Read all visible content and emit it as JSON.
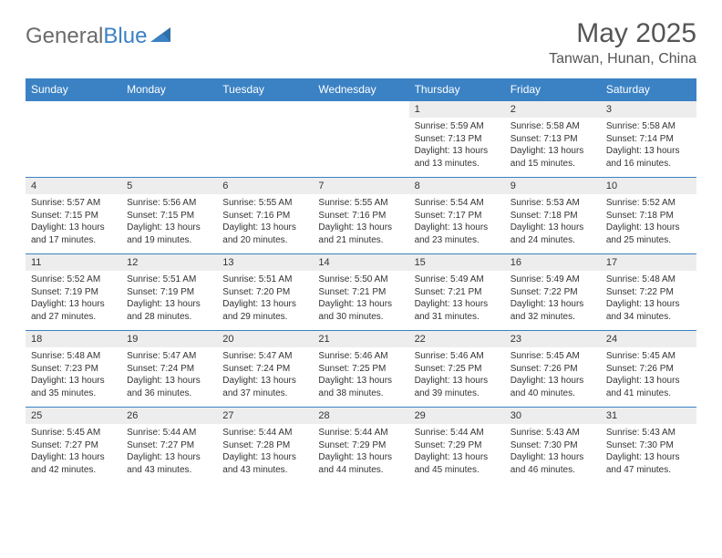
{
  "logo": {
    "text1": "General",
    "text2": "Blue"
  },
  "title": "May 2025",
  "location": "Tanwan, Hunan, China",
  "colors": {
    "header_bg": "#3b82c4",
    "header_text": "#ffffff",
    "daynum_bg": "#ededed",
    "border": "#3b82c4",
    "logo_gray": "#6b6b6b",
    "logo_blue": "#3b82c4",
    "title_color": "#555555"
  },
  "day_headers": [
    "Sunday",
    "Monday",
    "Tuesday",
    "Wednesday",
    "Thursday",
    "Friday",
    "Saturday"
  ],
  "weeks": [
    {
      "nums": [
        "",
        "",
        "",
        "",
        "1",
        "2",
        "3"
      ],
      "cells": [
        null,
        null,
        null,
        null,
        {
          "sunrise": "5:59 AM",
          "sunset": "7:13 PM",
          "daylight": "13 hours and 13 minutes."
        },
        {
          "sunrise": "5:58 AM",
          "sunset": "7:13 PM",
          "daylight": "13 hours and 15 minutes."
        },
        {
          "sunrise": "5:58 AM",
          "sunset": "7:14 PM",
          "daylight": "13 hours and 16 minutes."
        }
      ]
    },
    {
      "nums": [
        "4",
        "5",
        "6",
        "7",
        "8",
        "9",
        "10"
      ],
      "cells": [
        {
          "sunrise": "5:57 AM",
          "sunset": "7:15 PM",
          "daylight": "13 hours and 17 minutes."
        },
        {
          "sunrise": "5:56 AM",
          "sunset": "7:15 PM",
          "daylight": "13 hours and 19 minutes."
        },
        {
          "sunrise": "5:55 AM",
          "sunset": "7:16 PM",
          "daylight": "13 hours and 20 minutes."
        },
        {
          "sunrise": "5:55 AM",
          "sunset": "7:16 PM",
          "daylight": "13 hours and 21 minutes."
        },
        {
          "sunrise": "5:54 AM",
          "sunset": "7:17 PM",
          "daylight": "13 hours and 23 minutes."
        },
        {
          "sunrise": "5:53 AM",
          "sunset": "7:18 PM",
          "daylight": "13 hours and 24 minutes."
        },
        {
          "sunrise": "5:52 AM",
          "sunset": "7:18 PM",
          "daylight": "13 hours and 25 minutes."
        }
      ]
    },
    {
      "nums": [
        "11",
        "12",
        "13",
        "14",
        "15",
        "16",
        "17"
      ],
      "cells": [
        {
          "sunrise": "5:52 AM",
          "sunset": "7:19 PM",
          "daylight": "13 hours and 27 minutes."
        },
        {
          "sunrise": "5:51 AM",
          "sunset": "7:19 PM",
          "daylight": "13 hours and 28 minutes."
        },
        {
          "sunrise": "5:51 AM",
          "sunset": "7:20 PM",
          "daylight": "13 hours and 29 minutes."
        },
        {
          "sunrise": "5:50 AM",
          "sunset": "7:21 PM",
          "daylight": "13 hours and 30 minutes."
        },
        {
          "sunrise": "5:49 AM",
          "sunset": "7:21 PM",
          "daylight": "13 hours and 31 minutes."
        },
        {
          "sunrise": "5:49 AM",
          "sunset": "7:22 PM",
          "daylight": "13 hours and 32 minutes."
        },
        {
          "sunrise": "5:48 AM",
          "sunset": "7:22 PM",
          "daylight": "13 hours and 34 minutes."
        }
      ]
    },
    {
      "nums": [
        "18",
        "19",
        "20",
        "21",
        "22",
        "23",
        "24"
      ],
      "cells": [
        {
          "sunrise": "5:48 AM",
          "sunset": "7:23 PM",
          "daylight": "13 hours and 35 minutes."
        },
        {
          "sunrise": "5:47 AM",
          "sunset": "7:24 PM",
          "daylight": "13 hours and 36 minutes."
        },
        {
          "sunrise": "5:47 AM",
          "sunset": "7:24 PM",
          "daylight": "13 hours and 37 minutes."
        },
        {
          "sunrise": "5:46 AM",
          "sunset": "7:25 PM",
          "daylight": "13 hours and 38 minutes."
        },
        {
          "sunrise": "5:46 AM",
          "sunset": "7:25 PM",
          "daylight": "13 hours and 39 minutes."
        },
        {
          "sunrise": "5:45 AM",
          "sunset": "7:26 PM",
          "daylight": "13 hours and 40 minutes."
        },
        {
          "sunrise": "5:45 AM",
          "sunset": "7:26 PM",
          "daylight": "13 hours and 41 minutes."
        }
      ]
    },
    {
      "nums": [
        "25",
        "26",
        "27",
        "28",
        "29",
        "30",
        "31"
      ],
      "cells": [
        {
          "sunrise": "5:45 AM",
          "sunset": "7:27 PM",
          "daylight": "13 hours and 42 minutes."
        },
        {
          "sunrise": "5:44 AM",
          "sunset": "7:27 PM",
          "daylight": "13 hours and 43 minutes."
        },
        {
          "sunrise": "5:44 AM",
          "sunset": "7:28 PM",
          "daylight": "13 hours and 43 minutes."
        },
        {
          "sunrise": "5:44 AM",
          "sunset": "7:29 PM",
          "daylight": "13 hours and 44 minutes."
        },
        {
          "sunrise": "5:44 AM",
          "sunset": "7:29 PM",
          "daylight": "13 hours and 45 minutes."
        },
        {
          "sunrise": "5:43 AM",
          "sunset": "7:30 PM",
          "daylight": "13 hours and 46 minutes."
        },
        {
          "sunrise": "5:43 AM",
          "sunset": "7:30 PM",
          "daylight": "13 hours and 47 minutes."
        }
      ]
    }
  ],
  "labels": {
    "sunrise": "Sunrise:",
    "sunset": "Sunset:",
    "daylight": "Daylight:"
  }
}
